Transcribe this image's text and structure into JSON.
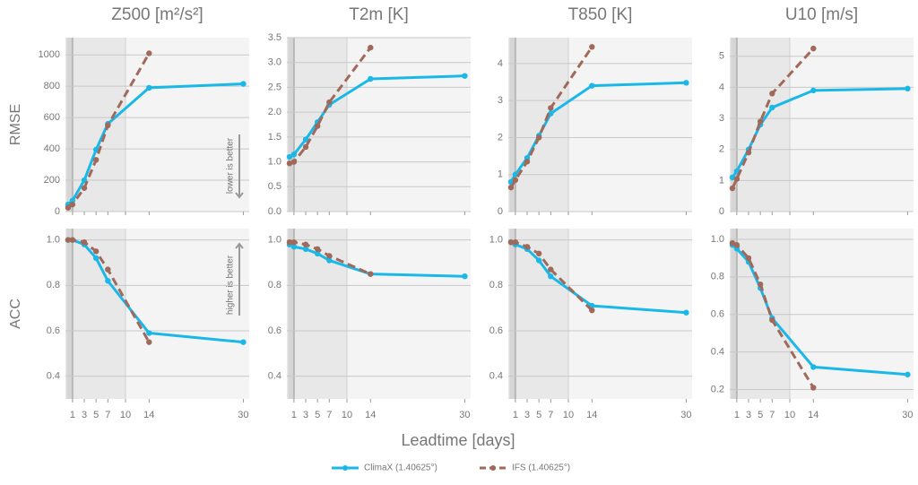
{
  "chart_data": [
    {
      "type": "line",
      "title": "Z500 [m²/s²]",
      "ylabel": "RMSE",
      "annotation": "lower is better",
      "spans": [
        [
          0,
          10
        ],
        [
          0,
          1
        ]
      ],
      "xlim": [
        -0.2,
        31
      ],
      "xticks": [
        1,
        3,
        5,
        7,
        10,
        14,
        30
      ],
      "ylim": [
        0,
        1110
      ],
      "yticks": [
        0,
        200,
        400,
        600,
        800,
        1000
      ],
      "grid": true,
      "series": [
        {
          "name": "ClimaX (1.40625°)",
          "color": "#1ab8e8",
          "linestyle": "solid",
          "x": [
            0.25,
            1,
            3,
            5,
            7,
            14,
            30
          ],
          "values": [
            45,
            70,
            200,
            395,
            560,
            790,
            815
          ]
        },
        {
          "name": "IFS (1.40625°)",
          "color": "#a0695a",
          "linestyle": "dashed",
          "x": [
            0.25,
            1,
            3,
            5,
            7,
            14
          ],
          "values": [
            25,
            45,
            150,
            330,
            550,
            1010
          ]
        }
      ]
    },
    {
      "type": "line",
      "title": "T2m [K]",
      "spans": [
        [
          0,
          10
        ],
        [
          0,
          1
        ]
      ],
      "xlim": [
        -0.2,
        31
      ],
      "xticks": [
        1,
        3,
        5,
        7,
        10,
        14,
        30
      ],
      "ylim": [
        0,
        3.5
      ],
      "yticks": [
        {
          "value": 0,
          "label": "0.0"
        },
        0.5,
        {
          "value": 1,
          "label": "1.0"
        },
        1.5,
        {
          "value": 2,
          "label": "2.0"
        },
        2.5,
        {
          "value": 3,
          "label": "3.0"
        },
        3.5
      ],
      "grid": true,
      "series": [
        {
          "name": "ClimaX (1.40625°)",
          "color": "#1ab8e8",
          "linestyle": "solid",
          "x": [
            0.25,
            1,
            3,
            5,
            7,
            14,
            30
          ],
          "values": [
            1.1,
            1.15,
            1.45,
            1.8,
            2.15,
            2.67,
            2.73
          ]
        },
        {
          "name": "IFS (1.40625°)",
          "color": "#a0695a",
          "linestyle": "dashed",
          "x": [
            0.25,
            1,
            3,
            5,
            7,
            14
          ],
          "values": [
            0.97,
            1.0,
            1.3,
            1.72,
            2.2,
            3.3
          ]
        }
      ]
    },
    {
      "type": "line",
      "title": "T850 [K]",
      "spans": [
        [
          0,
          10
        ],
        [
          0,
          1
        ]
      ],
      "xlim": [
        -0.2,
        31
      ],
      "xticks": [
        1,
        3,
        5,
        7,
        10,
        14,
        30
      ],
      "ylim": [
        0,
        4.7
      ],
      "yticks": [
        0,
        1,
        2,
        3,
        4
      ],
      "grid": true,
      "series": [
        {
          "name": "ClimaX (1.40625°)",
          "color": "#1ab8e8",
          "linestyle": "solid",
          "x": [
            0.25,
            1,
            3,
            5,
            7,
            14,
            30
          ],
          "values": [
            0.8,
            1.0,
            1.45,
            2.05,
            2.65,
            3.4,
            3.48
          ]
        },
        {
          "name": "IFS (1.40625°)",
          "color": "#a0695a",
          "linestyle": "dashed",
          "x": [
            0.25,
            1,
            3,
            5,
            7,
            14
          ],
          "values": [
            0.65,
            0.85,
            1.35,
            2.0,
            2.8,
            4.45
          ]
        }
      ]
    },
    {
      "type": "line",
      "title": "U10 [m/s]",
      "spans": [
        [
          0,
          10
        ],
        [
          0,
          1
        ]
      ],
      "xlim": [
        -0.2,
        31
      ],
      "xticks": [
        1,
        3,
        5,
        7,
        10,
        14,
        30
      ],
      "ylim": [
        0,
        5.6
      ],
      "yticks": [
        0,
        1,
        2,
        3,
        4,
        5
      ],
      "grid": true,
      "series": [
        {
          "name": "ClimaX (1.40625°)",
          "color": "#1ab8e8",
          "linestyle": "solid",
          "x": [
            0.25,
            1,
            3,
            5,
            7,
            14,
            30
          ],
          "values": [
            1.1,
            1.3,
            2.0,
            2.8,
            3.35,
            3.9,
            3.96
          ]
        },
        {
          "name": "IFS (1.40625°)",
          "color": "#a0695a",
          "linestyle": "dashed",
          "x": [
            0.25,
            1,
            3,
            5,
            7,
            14
          ],
          "values": [
            0.75,
            1.05,
            1.9,
            2.9,
            3.8,
            5.25
          ]
        }
      ]
    },
    {
      "type": "line",
      "ylabel": "ACC",
      "annotation": "higher is better",
      "spans": [
        [
          0,
          10
        ],
        [
          0,
          1
        ]
      ],
      "xlim": [
        -0.2,
        31
      ],
      "xticks": [
        1,
        3,
        5,
        7,
        10,
        14,
        30
      ],
      "ylim": [
        0.3,
        1.05
      ],
      "yticks": [
        0.4,
        0.6,
        0.8,
        {
          "value": 1,
          "label": "1.0"
        }
      ],
      "grid": true,
      "series": [
        {
          "name": "ClimaX (1.40625°)",
          "color": "#1ab8e8",
          "linestyle": "solid",
          "x": [
            0.25,
            1,
            3,
            5,
            7,
            14,
            30
          ],
          "values": [
            1.0,
            1.0,
            0.98,
            0.92,
            0.82,
            0.59,
            0.55
          ]
        },
        {
          "name": "IFS (1.40625°)",
          "color": "#a0695a",
          "linestyle": "dashed",
          "x": [
            0.25,
            1,
            3,
            5,
            7,
            14
          ],
          "values": [
            1.0,
            1.0,
            0.99,
            0.95,
            0.87,
            0.55
          ]
        }
      ]
    },
    {
      "type": "line",
      "spans": [
        [
          0,
          10
        ],
        [
          0,
          1
        ]
      ],
      "xlim": [
        -0.2,
        31
      ],
      "xticks": [
        1,
        3,
        5,
        7,
        10,
        14,
        30
      ],
      "ylim": [
        0.3,
        1.05
      ],
      "yticks": [
        0.4,
        0.6,
        0.8,
        {
          "value": 1,
          "label": "1.0"
        }
      ],
      "grid": true,
      "series": [
        {
          "name": "ClimaX (1.40625°)",
          "color": "#1ab8e8",
          "linestyle": "solid",
          "x": [
            0.25,
            1,
            3,
            5,
            7,
            14,
            30
          ],
          "values": [
            0.98,
            0.97,
            0.96,
            0.94,
            0.91,
            0.85,
            0.84
          ]
        },
        {
          "name": "IFS (1.40625°)",
          "color": "#a0695a",
          "linestyle": "dashed",
          "x": [
            0.25,
            1,
            3,
            5,
            7,
            14
          ],
          "values": [
            0.99,
            0.99,
            0.98,
            0.96,
            0.93,
            0.85
          ]
        }
      ]
    },
    {
      "type": "line",
      "spans": [
        [
          0,
          10
        ],
        [
          0,
          1
        ]
      ],
      "xlim": [
        -0.2,
        31
      ],
      "xticks": [
        1,
        3,
        5,
        7,
        10,
        14,
        30
      ],
      "ylim": [
        0.3,
        1.05
      ],
      "yticks": [
        0.4,
        0.6,
        0.8,
        {
          "value": 1,
          "label": "1.0"
        }
      ],
      "grid": true,
      "series": [
        {
          "name": "ClimaX (1.40625°)",
          "color": "#1ab8e8",
          "linestyle": "solid",
          "x": [
            0.25,
            1,
            3,
            5,
            7,
            14,
            30
          ],
          "values": [
            0.99,
            0.98,
            0.96,
            0.91,
            0.84,
            0.71,
            0.68
          ]
        },
        {
          "name": "IFS (1.40625°)",
          "color": "#a0695a",
          "linestyle": "dashed",
          "x": [
            0.25,
            1,
            3,
            5,
            7,
            14
          ],
          "values": [
            0.99,
            0.99,
            0.97,
            0.94,
            0.87,
            0.69
          ]
        }
      ]
    },
    {
      "type": "line",
      "spans": [
        [
          0,
          10
        ],
        [
          0,
          1
        ]
      ],
      "xlim": [
        -0.2,
        31
      ],
      "xticks": [
        1,
        3,
        5,
        7,
        10,
        14,
        30
      ],
      "ylim": [
        0.15,
        1.057
      ],
      "yticks": [
        0.2,
        0.4,
        0.6,
        0.8,
        {
          "value": 1,
          "label": "1.0"
        }
      ],
      "grid": true,
      "series": [
        {
          "name": "ClimaX (1.40625°)",
          "color": "#1ab8e8",
          "linestyle": "solid",
          "x": [
            0.25,
            1,
            3,
            5,
            7,
            14,
            30
          ],
          "values": [
            0.97,
            0.95,
            0.88,
            0.74,
            0.58,
            0.32,
            0.28
          ]
        },
        {
          "name": "IFS (1.40625°)",
          "color": "#a0695a",
          "linestyle": "dashed",
          "x": [
            0.25,
            1,
            3,
            5,
            7,
            14
          ],
          "values": [
            0.98,
            0.97,
            0.9,
            0.76,
            0.57,
            0.21
          ]
        }
      ]
    }
  ],
  "figure": {
    "xlabel": "Leadtime [days]"
  }
}
